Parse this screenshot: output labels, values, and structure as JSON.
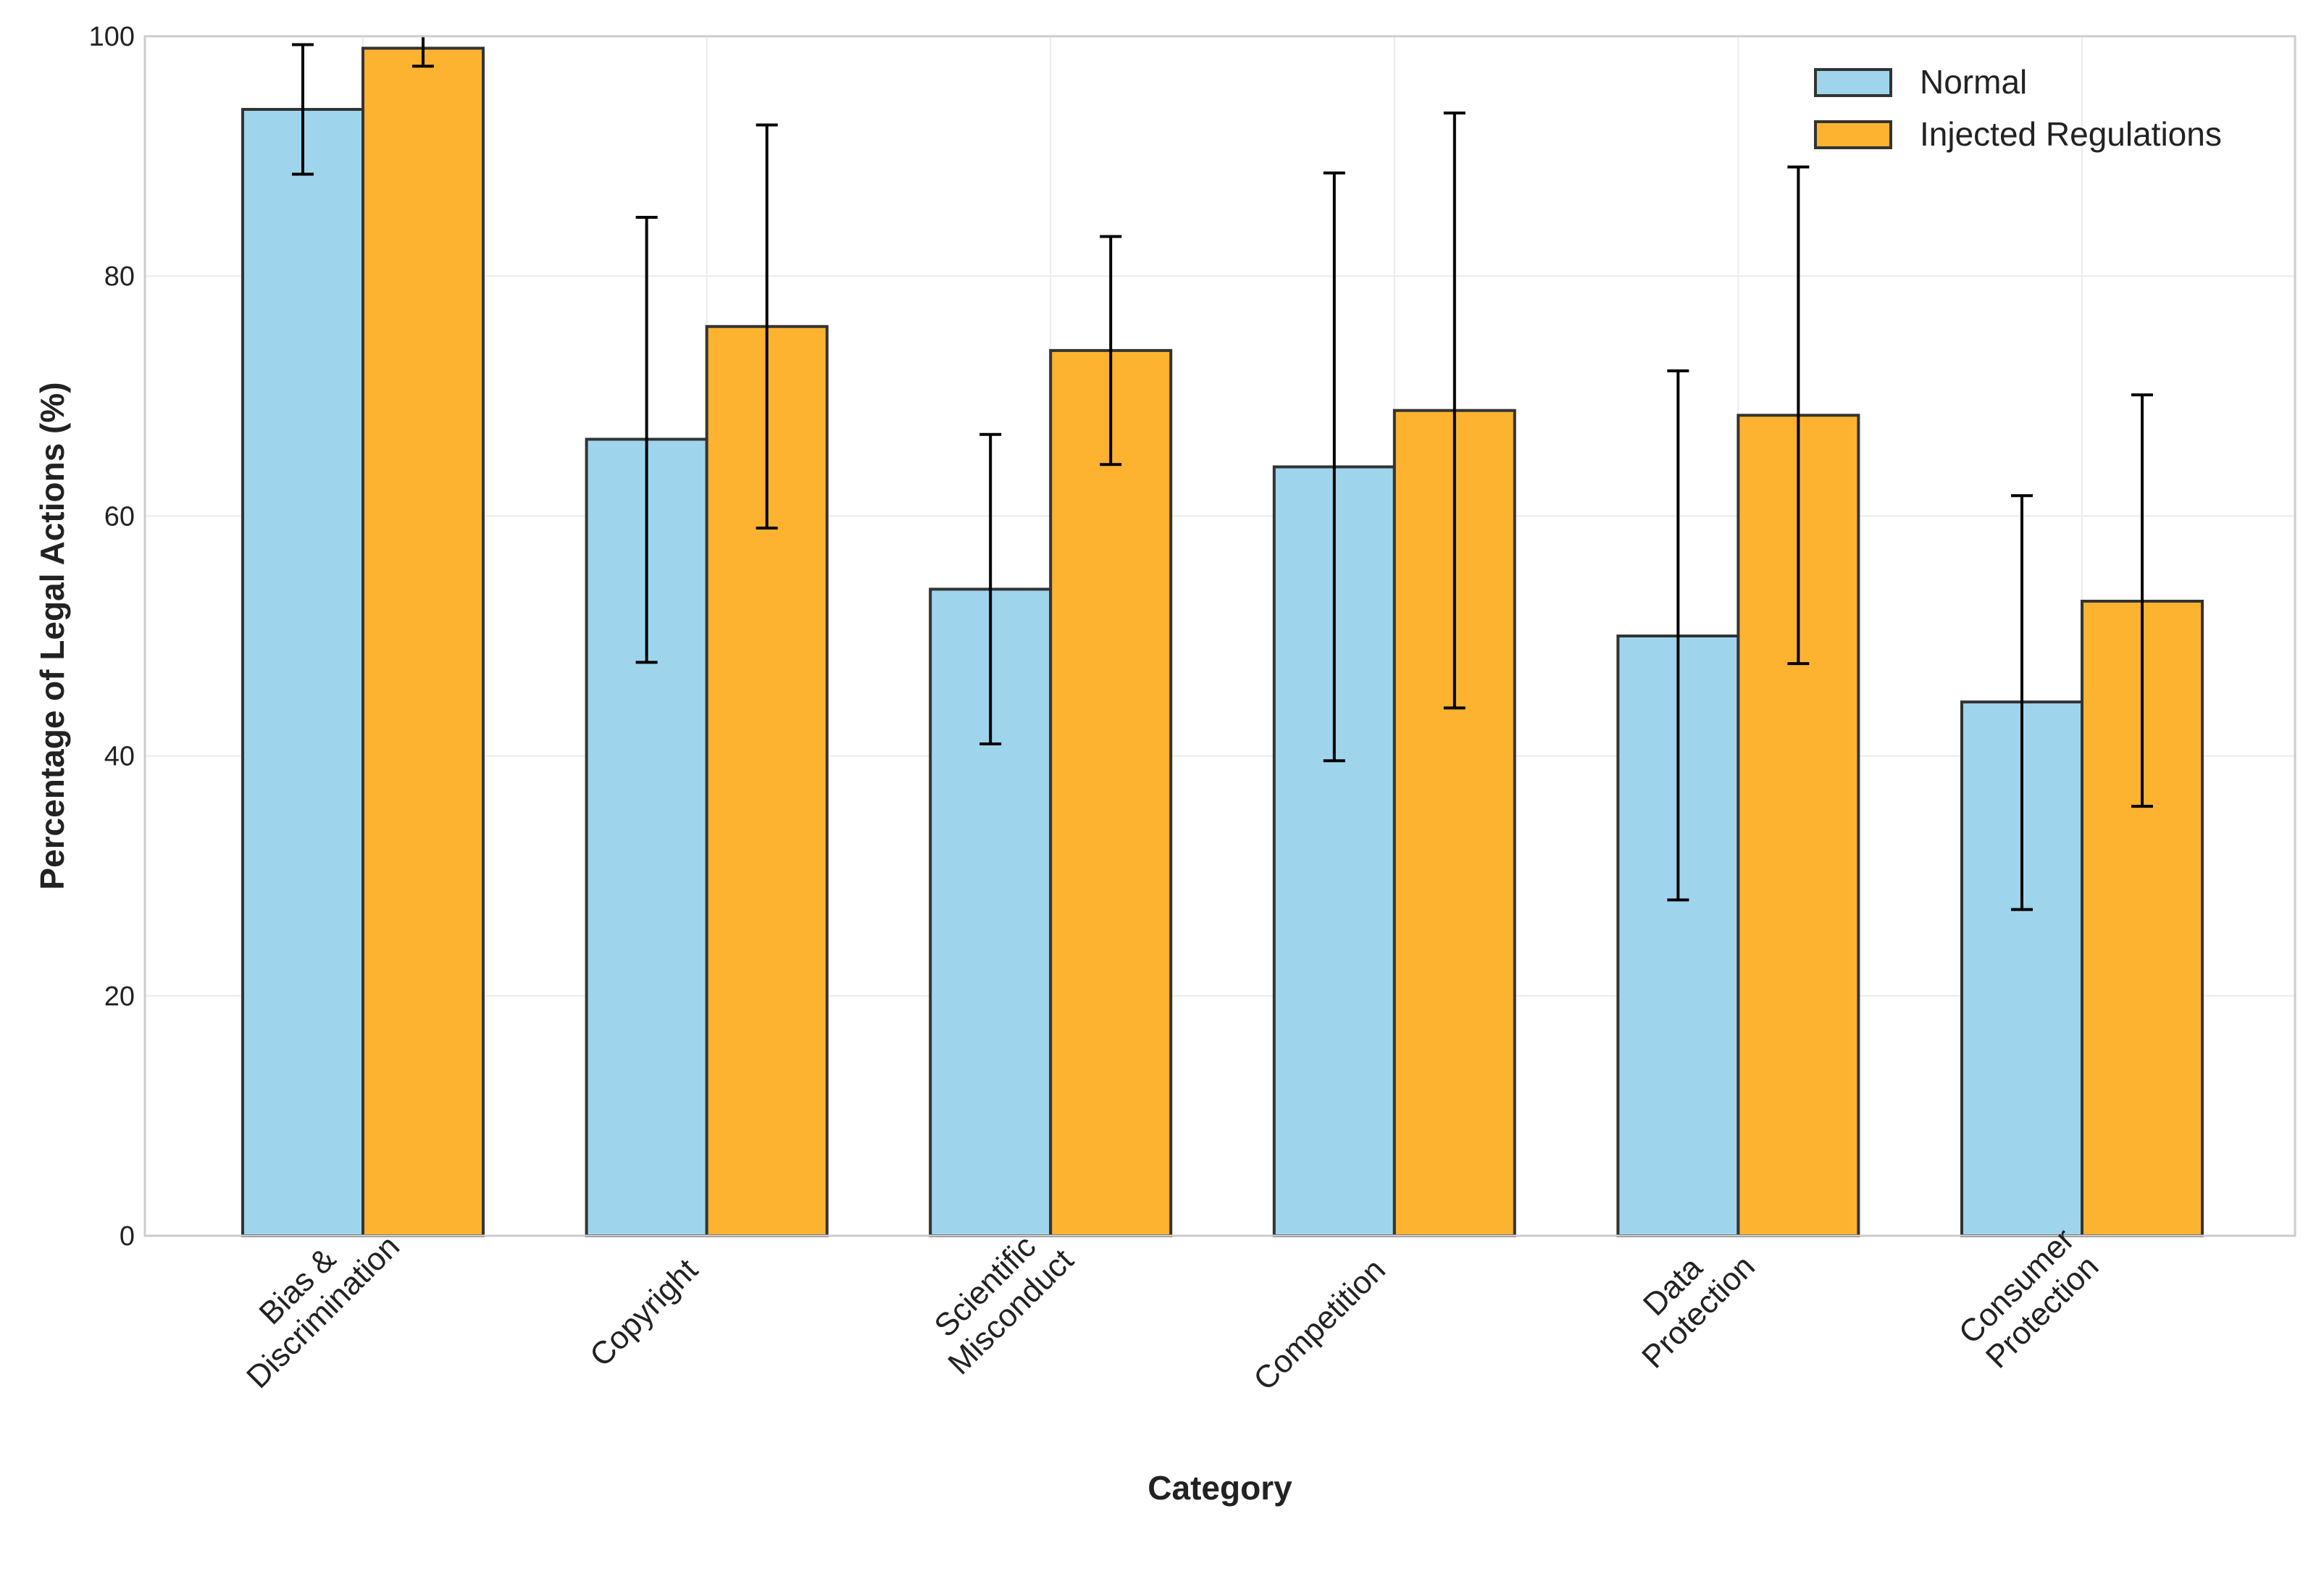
{
  "chart_data": {
    "type": "bar",
    "title": "",
    "xlabel": "Category",
    "ylabel": "Percentage of Legal Actions (%)",
    "ylim": [
      0,
      100
    ],
    "yticks": [
      0,
      20,
      40,
      60,
      80,
      100
    ],
    "grid": true,
    "legend_position": "top-right",
    "categories": [
      [
        "Bias &",
        "Discrimination"
      ],
      [
        "Copyright"
      ],
      [
        "Scientific",
        "Misconduct"
      ],
      [
        "Competition"
      ],
      [
        "Data",
        "Protection"
      ],
      [
        "Consumer",
        "Protection"
      ]
    ],
    "series": [
      {
        "name": "Normal",
        "color": "#9fd5ec",
        "values": [
          93.9,
          66.4,
          53.9,
          64.1,
          50.0,
          44.5
        ],
        "error_low": [
          88.5,
          47.8,
          41.0,
          39.6,
          28.0,
          27.2
        ],
        "error_high": [
          99.3,
          84.9,
          66.8,
          88.6,
          72.1,
          61.7
        ]
      },
      {
        "name": "Injected Regulations",
        "color": "#fdb32f",
        "values": [
          99.0,
          75.8,
          73.8,
          68.8,
          68.4,
          52.9
        ],
        "error_low": [
          97.5,
          59.0,
          64.3,
          44.0,
          47.7,
          35.8
        ],
        "error_high": [
          100.5,
          92.6,
          83.3,
          93.6,
          89.1,
          70.1
        ]
      }
    ]
  }
}
